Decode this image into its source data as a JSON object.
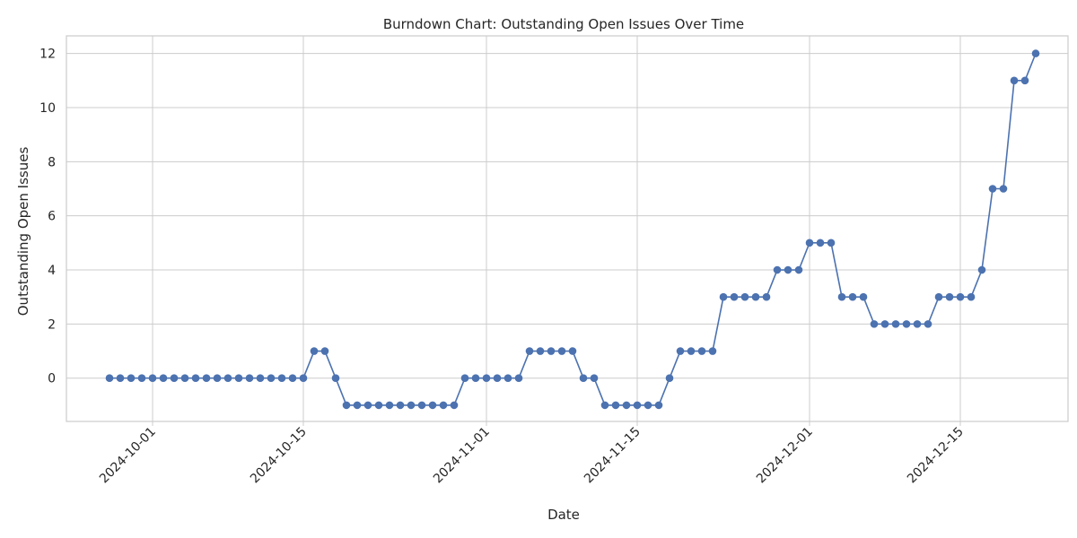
{
  "chart_data": {
    "type": "line",
    "title": "Burndown Chart: Outstanding Open Issues Over Time",
    "xlabel": "Date",
    "ylabel": "Outstanding Open Issues",
    "x_start": "2024-09-27",
    "x_end": "2024-12-21",
    "xlim": [
      "2024-09-23",
      "2024-12-25"
    ],
    "ylim": [
      -1.6,
      12.65
    ],
    "x_ticks": [
      "2024-10-01",
      "2024-10-15",
      "2024-11-01",
      "2024-11-15",
      "2024-12-01",
      "2024-12-15"
    ],
    "y_ticks": [
      0,
      2,
      4,
      6,
      8,
      10,
      12
    ],
    "grid": true,
    "color": "#4c72b0",
    "series": [
      {
        "marker": "circle",
        "values": [
          0,
          0,
          0,
          0,
          0,
          0,
          0,
          0,
          0,
          0,
          0,
          0,
          0,
          0,
          0,
          0,
          0,
          0,
          0,
          1,
          1,
          0,
          -1,
          -1,
          -1,
          -1,
          -1,
          -1,
          -1,
          -1,
          -1,
          -1,
          -1,
          0,
          0,
          0,
          0,
          0,
          0,
          1,
          1,
          1,
          1,
          1,
          0,
          0,
          -1,
          -1,
          -1,
          -1,
          -1,
          -1,
          0,
          1,
          1,
          1,
          1,
          3,
          3,
          3,
          3,
          3,
          4,
          4,
          4,
          5,
          5,
          5,
          3,
          3,
          3,
          2,
          2,
          2,
          2,
          2,
          2,
          3,
          3,
          3,
          3,
          4,
          7,
          7,
          11,
          11,
          12
        ]
      }
    ]
  }
}
